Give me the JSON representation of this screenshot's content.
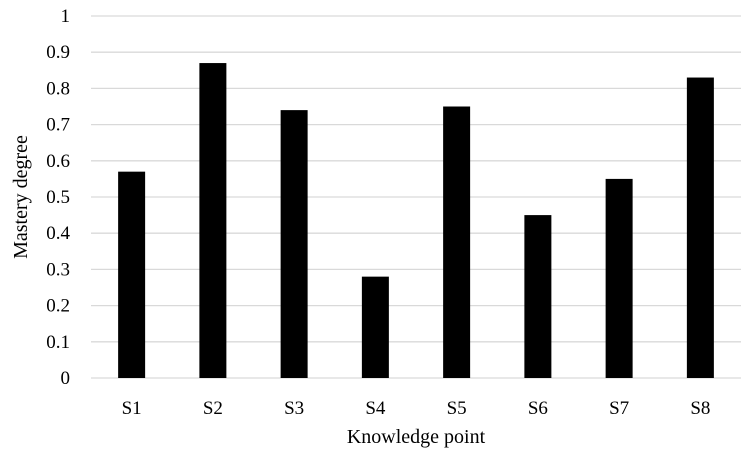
{
  "chart_data": {
    "type": "bar",
    "title": "",
    "xlabel": "Knowledge point",
    "ylabel": "Mastery degree",
    "categories": [
      "S1",
      "S2",
      "S3",
      "S4",
      "S5",
      "S6",
      "S7",
      "S8"
    ],
    "values": [
      0.57,
      0.87,
      0.74,
      0.28,
      0.75,
      0.45,
      0.55,
      0.83
    ],
    "ylim": [
      0,
      1
    ],
    "yticks": [
      "0",
      "0.1",
      "0.2",
      "0.3",
      "0.4",
      "0.5",
      "0.6",
      "0.7",
      "0.8",
      "0.9",
      "1"
    ],
    "grid": "horizontal",
    "legend": "none",
    "bar_color": "#000000",
    "grid_color": "#d9d9d9"
  }
}
